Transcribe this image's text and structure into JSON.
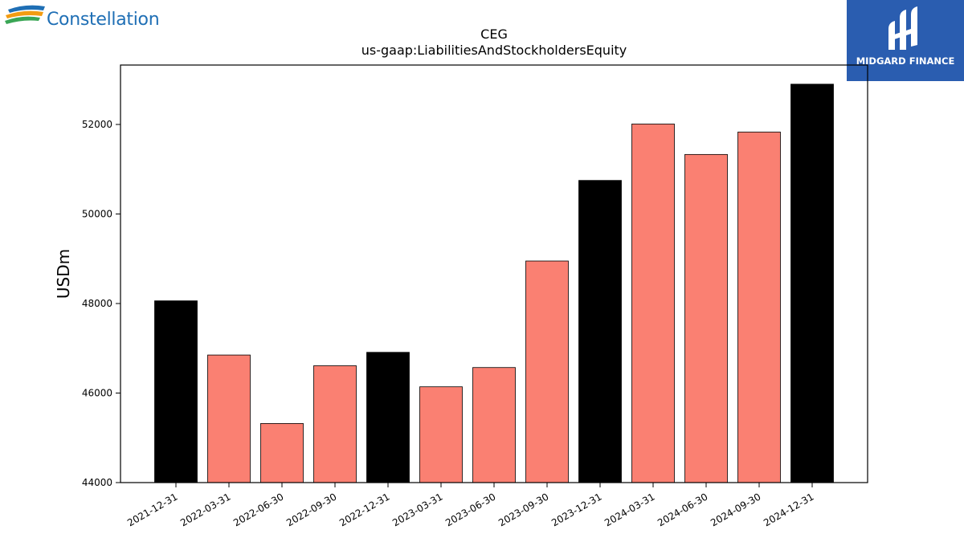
{
  "logos": {
    "left_brand": "Constellation",
    "right_brand": "MIDGARD FINANCE"
  },
  "chart_data": {
    "type": "bar",
    "title": "CEG",
    "subtitle": "us-gaap:LiabilitiesAndStockholdersEquity",
    "xlabel": "",
    "ylabel": "USDm",
    "ylim": [
      44000,
      53400
    ],
    "yticks": [
      44000,
      46000,
      48000,
      50000,
      52000
    ],
    "grid": false,
    "categories": [
      "2021-12-31",
      "2022-03-31",
      "2022-06-30",
      "2022-09-30",
      "2022-12-31",
      "2023-03-31",
      "2023-06-30",
      "2023-09-30",
      "2023-12-31",
      "2024-03-31",
      "2024-06-30",
      "2024-09-30",
      "2024-12-31"
    ],
    "values": [
      48060,
      46850,
      45320,
      46610,
      46910,
      46140,
      46570,
      48950,
      50750,
      52010,
      51330,
      51830,
      52900
    ],
    "annual": [
      true,
      false,
      false,
      false,
      true,
      false,
      false,
      false,
      true,
      false,
      false,
      false,
      true
    ],
    "colors": {
      "annual": "#000000",
      "quarterly": "#fa8072",
      "edge": "#000000"
    }
  }
}
